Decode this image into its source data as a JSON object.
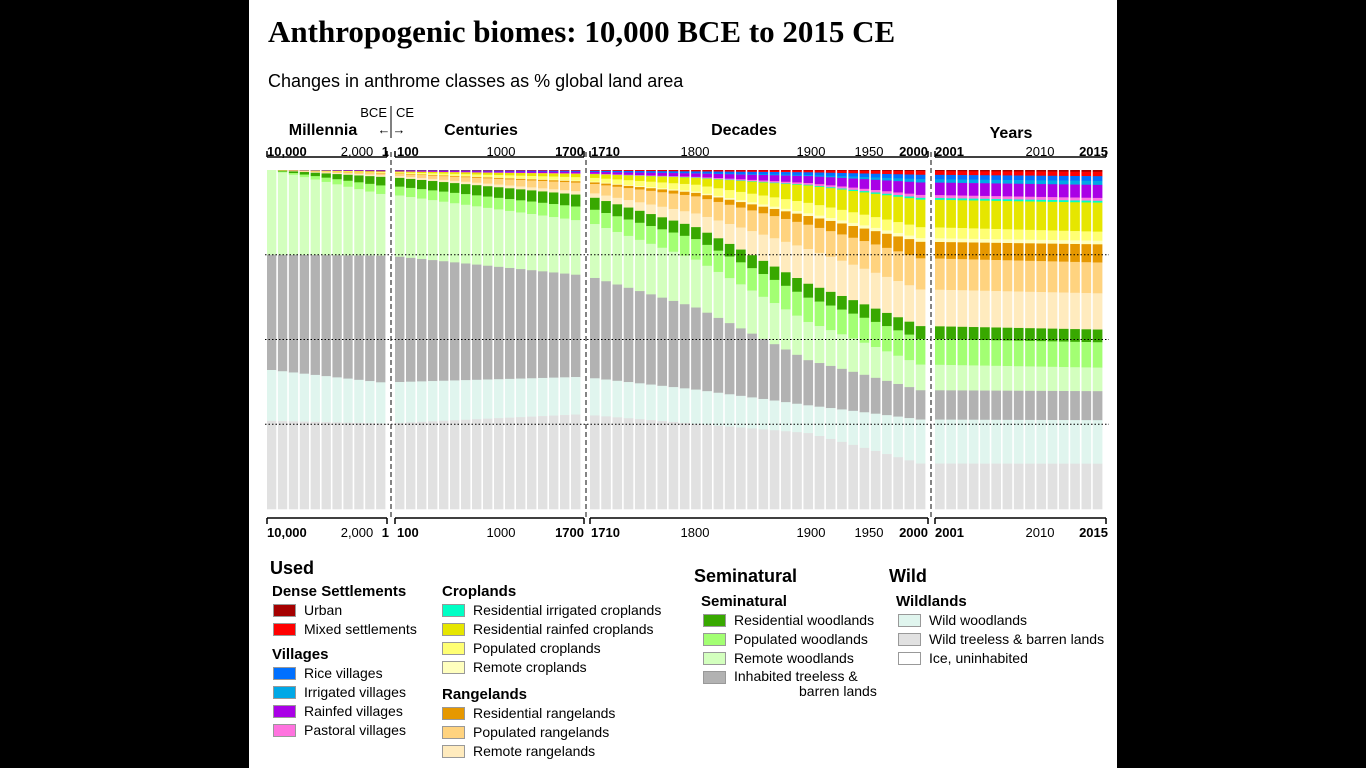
{
  "header": {
    "title": "Anthropogenic biomes: 10,000 BCE to 2015 CE",
    "subtitle": "Changes in anthrome classes as % global land area"
  },
  "chart_data": {
    "type": "stacked bar",
    "title": "Anthropogenic biomes: 10,000 BCE to 2015 CE",
    "subtitle": "Changes in anthrome classes as % global land area",
    "ylim": [
      0,
      100
    ],
    "grid": "dotted lines at 25, 50, 75",
    "era_labels": {
      "bce": "BCE",
      "ce": "CE"
    },
    "panels": [
      {
        "name": "Millennia",
        "tick_labels": [
          "10,000",
          "2,000",
          "1"
        ],
        "bold_ticks": [
          "10,000",
          "1"
        ]
      },
      {
        "name": "Centuries",
        "tick_labels": [
          "100",
          "1000",
          "1700"
        ],
        "bold_ticks": [
          "100",
          "1700"
        ]
      },
      {
        "name": "Decades",
        "tick_labels": [
          "1710",
          "1800",
          "1900",
          "1950",
          "2000"
        ],
        "bold_ticks": [
          "1710",
          "2000"
        ]
      },
      {
        "name": "Years",
        "tick_labels": [
          "2001",
          "2010",
          "2015"
        ],
        "bold_ticks": [
          "2001",
          "2015"
        ]
      }
    ],
    "x": [
      "-10000",
      "-9000",
      "-8000",
      "-7000",
      "-6000",
      "-5000",
      "-4000",
      "-3000",
      "-2000",
      "-1000",
      "0",
      "100",
      "200",
      "300",
      "400",
      "500",
      "600",
      "700",
      "800",
      "900",
      "1000",
      "1100",
      "1200",
      "1300",
      "1400",
      "1500",
      "1600",
      "1700",
      "1710",
      "1720",
      "1730",
      "1740",
      "1750",
      "1760",
      "1770",
      "1780",
      "1790",
      "1800",
      "1810",
      "1820",
      "1830",
      "1840",
      "1850",
      "1860",
      "1870",
      "1880",
      "1890",
      "1900",
      "1910",
      "1920",
      "1930",
      "1940",
      "1950",
      "1960",
      "1970",
      "1980",
      "1990",
      "2000",
      "2001",
      "2002",
      "2003",
      "2004",
      "2005",
      "2006",
      "2007",
      "2008",
      "2009",
      "2010",
      "2011",
      "2012",
      "2013",
      "2014",
      "2015"
    ],
    "anchors": {
      "x_index": [
        0,
        10,
        27,
        37,
        47,
        57,
        72
      ],
      "series": [
        {
          "name": "Urban",
          "color": "#a50000",
          "values": [
            0,
            0,
            0,
            0.1,
            0.15,
            0.3,
            0.5
          ]
        },
        {
          "name": "Mixed settlements",
          "color": "#ff0000",
          "values": [
            0,
            0.1,
            0.2,
            0.3,
            0.5,
            1,
            1.2
          ]
        },
        {
          "name": "Rice villages",
          "color": "#0070ff",
          "values": [
            0,
            0.1,
            0.3,
            0.5,
            0.8,
            1.2,
            1.3
          ]
        },
        {
          "name": "Irrigated villages",
          "color": "#00a8e6",
          "values": [
            0,
            0,
            0,
            0.1,
            0.3,
            0.9,
            1.1
          ]
        },
        {
          "name": "Rainfed villages",
          "color": "#a900e6",
          "values": [
            0,
            0.2,
            0.5,
            1,
            2,
            3.4,
            3.6
          ]
        },
        {
          "name": "Pastoral villages",
          "color": "#ff73df",
          "values": [
            0,
            0,
            0.1,
            0.2,
            0.5,
            0.8,
            0.8
          ]
        },
        {
          "name": "Residential irrigated croplands",
          "color": "#00ffc5",
          "values": [
            0,
            0,
            0,
            0.1,
            0.2,
            0.5,
            0.5
          ]
        },
        {
          "name": "Residential rainfed croplands",
          "color": "#e6e600",
          "values": [
            0,
            0.2,
            1,
            2,
            5,
            7.5,
            8
          ]
        },
        {
          "name": "Populated croplands",
          "color": "#ffff73",
          "values": [
            0,
            0.3,
            1,
            2,
            3,
            3,
            2.5
          ]
        },
        {
          "name": "Remote croplands",
          "color": "#ffffbe",
          "values": [
            0,
            0,
            0.2,
            0.4,
            0.8,
            1,
            1
          ]
        },
        {
          "name": "Residential rangelands",
          "color": "#e69800",
          "values": [
            0,
            0.1,
            0.4,
            1,
            2.5,
            4.5,
            5
          ]
        },
        {
          "name": "Populated rangelands",
          "color": "#ffd37f",
          "values": [
            0,
            0.5,
            2.5,
            5,
            7,
            8.5,
            8.5
          ]
        },
        {
          "name": "Remote rangelands",
          "color": "#ffebbe",
          "values": [
            0,
            0.5,
            1,
            4,
            10,
            10,
            10
          ]
        },
        {
          "name": "Residential woodlands",
          "color": "#38a800",
          "values": [
            0,
            2.5,
            3.5,
            3.5,
            4,
            3.5,
            3.5
          ]
        },
        {
          "name": "Populated woodlands",
          "color": "#a3ff73",
          "values": [
            0,
            2.5,
            4,
            6,
            7,
            7,
            7
          ]
        },
        {
          "name": "Remote woodlands",
          "color": "#d3ffbe",
          "values": [
            25,
            18,
            16,
            14,
            11,
            7,
            6.5
          ]
        },
        {
          "name": "Inhabited treeless & barren lands",
          "color": "#b2b2b2",
          "values": [
            34,
            37,
            30,
            24,
            13,
            8,
            8
          ]
        },
        {
          "name": "Wild woodlands",
          "color": "#e0f5ee",
          "values": [
            15,
            12,
            11,
            10,
            8,
            12,
            12
          ]
        },
        {
          "name": "Wild treeless & barren lands",
          "color": "#e1e1e1",
          "values": [
            26,
            25,
            27.7,
            24.9,
            21.85,
            12.4,
            12.5
          ]
        },
        {
          "name": "Ice, uninhabited",
          "color": "#ffffff",
          "values": [
            0,
            0,
            0,
            0,
            0,
            0,
            0
          ]
        }
      ]
    }
  },
  "legend": {
    "used": "Used",
    "seminatural": "Seminatural",
    "wild": "Wild",
    "groups": {
      "dense": "Dense Settlements",
      "villages": "Villages",
      "croplands": "Croplands",
      "rangelands": "Rangelands",
      "seminatural": "Seminatural",
      "wildlands": "Wildlands"
    },
    "items": {
      "urban": "Urban",
      "mixed": "Mixed settlements",
      "rice": "Rice villages",
      "irrigated_v": "Irrigated villages",
      "rainfed_v": "Rainfed villages",
      "pastoral": "Pastoral villages",
      "res_irr_crop": "Residential irrigated croplands",
      "res_rain_crop": "Residential rainfed croplands",
      "pop_crop": "Populated croplands",
      "rem_crop": "Remote croplands",
      "res_range": "Residential rangelands",
      "pop_range": "Populated rangelands",
      "rem_range": "Remote rangelands",
      "res_wood": "Residential woodlands",
      "pop_wood": "Populated woodlands",
      "rem_wood": "Remote woodlands",
      "inhabited_a": "Inhabited treeless &",
      "inhabited_b": "barren lands",
      "wild_wood": "Wild woodlands",
      "wild_barren": "Wild treeless & barren lands",
      "ice": "Ice, uninhabited"
    },
    "colors": {
      "urban": "#a50000",
      "mixed": "#ff0000",
      "rice": "#0070ff",
      "irrigated_v": "#00a8e6",
      "rainfed_v": "#a900e6",
      "pastoral": "#ff73df",
      "res_irr_crop": "#00ffc5",
      "res_rain_crop": "#e6e600",
      "pop_crop": "#ffff73",
      "rem_crop": "#ffffbe",
      "res_range": "#e69800",
      "pop_range": "#ffd37f",
      "rem_range": "#ffebbe",
      "res_wood": "#38a800",
      "pop_wood": "#a3ff73",
      "rem_wood": "#d3ffbe",
      "inhabited": "#b2b2b2",
      "wild_wood": "#e0f5ee",
      "wild_barren": "#e1e1e1",
      "ice": "#ffffff"
    }
  }
}
